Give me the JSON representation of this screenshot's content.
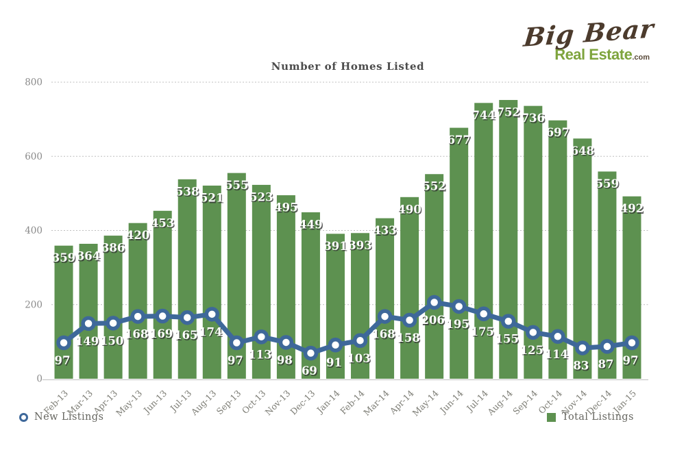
{
  "chart_data": {
    "type": "combo",
    "title": "Number of Homes Listed",
    "categories": [
      "Feb-13",
      "Mar-13",
      "Apr-13",
      "May-13",
      "Jun-13",
      "Jul-13",
      "Aug-13",
      "Sep-13",
      "Oct-13",
      "Nov-13",
      "Dec-13",
      "Jan-14",
      "Feb-14",
      "Mar-14",
      "Apr-14",
      "May-14",
      "Jun-14",
      "Jul-14",
      "Aug-14",
      "Sep-14",
      "Oct-14",
      "Nov-14",
      "Dec-14",
      "Jan-15"
    ],
    "series": [
      {
        "name": "Total Listings",
        "type": "bar",
        "color": "#5d9150",
        "values": [
          359,
          364,
          386,
          420,
          453,
          538,
          521,
          555,
          523,
          495,
          449,
          391,
          393,
          433,
          490,
          552,
          677,
          744,
          752,
          736,
          697,
          648,
          559,
          492
        ]
      },
      {
        "name": "New Listings",
        "type": "line",
        "color": "#3e689a",
        "marker": "ring",
        "values": [
          97,
          149,
          150,
          168,
          169,
          165,
          174,
          97,
          113,
          98,
          69,
          91,
          103,
          168,
          158,
          206,
          195,
          175,
          155,
          125,
          114,
          83,
          87,
          97
        ]
      }
    ],
    "ylim": [
      0,
      800
    ],
    "yticks": [
      0,
      200,
      400,
      600,
      800
    ],
    "grid": "dotted-horizontal",
    "value_labels": "on",
    "legend_position": "bottom",
    "axis_color": "#8a8a8a",
    "grid_color": "#bdbdbd",
    "value_label_color": "#ffffff"
  },
  "logo": {
    "line1": "Big Bear",
    "line2": "Real Estate",
    "suffix": ".com"
  },
  "legend": {
    "left": "New Listings",
    "right": "Total Listings"
  }
}
